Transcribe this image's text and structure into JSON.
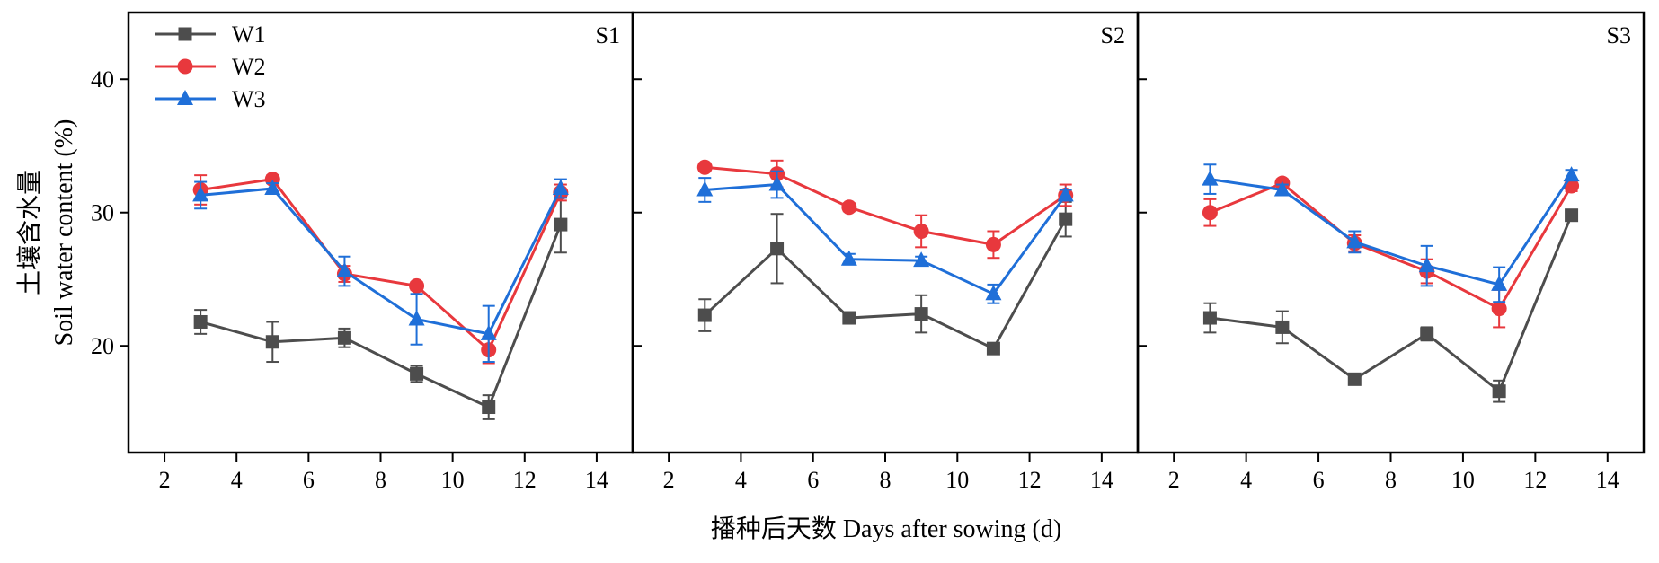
{
  "chart_data": {
    "type": "line",
    "x_values": [
      3,
      5,
      7,
      9,
      11,
      13
    ],
    "xlabel": "播种后天数 Days after sowing (d)",
    "ylabel_cn": "土壤含水量",
    "ylabel": "Soil water content (%)",
    "xlim": [
      1,
      15
    ],
    "ylim": [
      12,
      45
    ],
    "x_ticks": [
      2,
      4,
      6,
      8,
      10,
      12,
      14
    ],
    "y_ticks": [
      20,
      30,
      40
    ],
    "grid": false,
    "legend": {
      "placement": "top-left",
      "entries": [
        {
          "name": "W1",
          "marker": "square",
          "color": "#4d4d4d"
        },
        {
          "name": "W2",
          "marker": "circle",
          "color": "#e8383d"
        },
        {
          "name": "W3",
          "marker": "triangle",
          "color": "#1f6fd8"
        }
      ]
    },
    "panels": [
      {
        "label": "S1",
        "series": [
          {
            "name": "W1",
            "values": [
              21.8,
              20.3,
              20.6,
              17.9,
              15.4,
              29.1
            ],
            "errors": [
              0.9,
              1.5,
              0.7,
              0.6,
              0.9,
              2.1
            ]
          },
          {
            "name": "W2",
            "values": [
              31.7,
              32.5,
              25.4,
              24.5,
              19.7,
              31.5
            ],
            "errors": [
              1.1,
              0.3,
              0.6,
              0.3,
              1.0,
              0.6
            ]
          },
          {
            "name": "W3",
            "values": [
              31.3,
              31.8,
              25.6,
              22.0,
              20.9,
              31.8
            ],
            "errors": [
              1.0,
              0.4,
              1.1,
              1.9,
              2.1,
              0.7
            ]
          }
        ]
      },
      {
        "label": "S2",
        "series": [
          {
            "name": "W1",
            "values": [
              22.3,
              27.3,
              22.1,
              22.4,
              19.8,
              29.5
            ],
            "errors": [
              1.2,
              2.6,
              0.4,
              1.4,
              0.4,
              1.3
            ]
          },
          {
            "name": "W2",
            "values": [
              33.4,
              32.9,
              30.4,
              28.6,
              27.6,
              31.3
            ],
            "errors": [
              0.3,
              1.0,
              0.3,
              1.2,
              1.0,
              0.8
            ]
          },
          {
            "name": "W3",
            "values": [
              31.7,
              32.1,
              26.5,
              26.4,
              23.9,
              31.3
            ],
            "errors": [
              0.9,
              1.0,
              0.4,
              0.3,
              0.7,
              0.4
            ]
          }
        ]
      },
      {
        "label": "S3",
        "series": [
          {
            "name": "W1",
            "values": [
              22.1,
              21.4,
              17.5,
              20.9,
              16.6,
              29.8
            ],
            "errors": [
              1.1,
              1.2,
              0.4,
              0.5,
              0.8,
              0.4
            ]
          },
          {
            "name": "W2",
            "values": [
              30.0,
              32.2,
              27.7,
              25.6,
              22.8,
              32.0
            ],
            "errors": [
              1.0,
              0.3,
              0.6,
              0.9,
              1.4,
              0.4
            ]
          },
          {
            "name": "W3",
            "values": [
              32.5,
              31.7,
              27.8,
              26.0,
              24.6,
              32.8
            ],
            "errors": [
              1.1,
              0.4,
              0.8,
              1.5,
              1.3,
              0.4
            ]
          }
        ]
      }
    ]
  }
}
